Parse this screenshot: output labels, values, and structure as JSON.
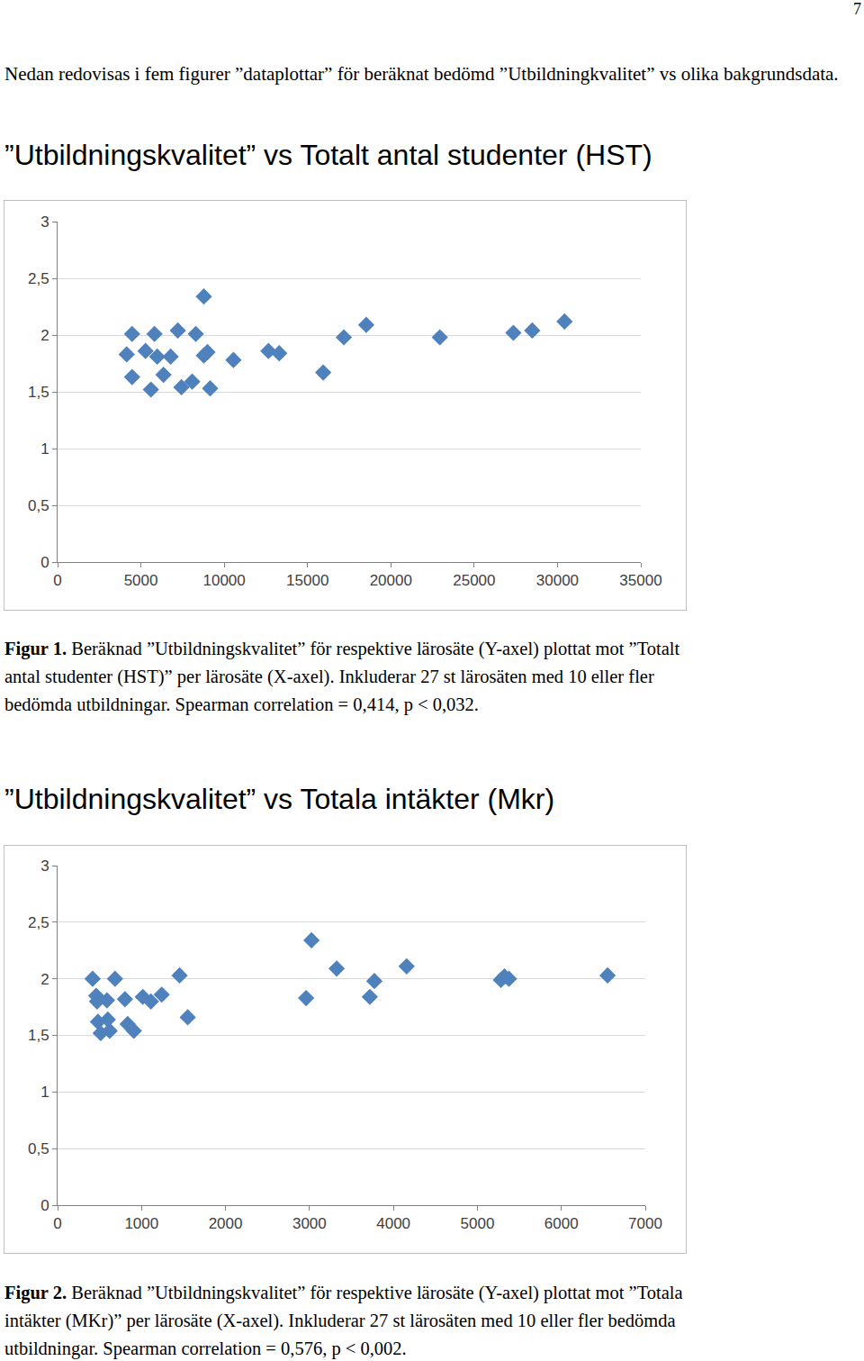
{
  "page_number": "7",
  "intro": "Nedan redovisas i fem figurer ”dataplottar” för beräknat bedömd ”Utbildningkvalitet” vs olika bakgrundsdata.",
  "chart_data": [
    {
      "type": "scatter",
      "title": "”Utbildningskvalitet” vs Totalt antal studenter (HST)",
      "caption": {
        "label": "Figur 1.",
        "text": "Beräknad ”Utbildningskvalitet” för respektive lärosäte (Y-axel) plottat mot ”Totalt antal studenter (HST)” per lärosäte (X-axel). Inkluderar 27 st lärosäten med 10 eller fler bedömda utbildningar. Spearman correlation = 0,414, p < 0,032."
      },
      "x": [
        4146,
        4470,
        4470,
        5277,
        5600,
        5816,
        5977,
        6354,
        6785,
        7216,
        7431,
        8077,
        8293,
        8777,
        8777,
        8993,
        9154,
        10554,
        12654,
        13300,
        15939,
        17177,
        18523,
        22939,
        27354,
        28485,
        30424
      ],
      "values": [
        1.83,
        2.01,
        1.63,
        1.86,
        1.52,
        2.01,
        1.81,
        1.65,
        1.81,
        2.04,
        1.54,
        1.59,
        2.01,
        2.34,
        1.82,
        1.85,
        1.53,
        1.78,
        1.86,
        1.84,
        1.67,
        1.98,
        2.09,
        1.98,
        2.02,
        2.04,
        2.12
      ],
      "color": "#4f81bd",
      "marker": "diamond",
      "grid": "y",
      "xlim": [
        0,
        35000
      ],
      "xticks": [
        0,
        5000,
        10000,
        15000,
        20000,
        25000,
        30000,
        35000
      ],
      "ylim": [
        0,
        3
      ],
      "yticks": [
        0,
        {
          "value": 0.5,
          "label": "0,5"
        },
        1,
        {
          "value": 1.5,
          "label": "1,5"
        },
        2,
        {
          "value": 2.5,
          "label": "2,5"
        },
        3
      ]
    },
    {
      "type": "scatter",
      "title": "”Utbildningskvalitet” vs Totala intäkter (Mkr)",
      "caption": {
        "label": "Figur 2.",
        "text": "Beräknad ”Utbildningskvalitet” för respektive lärosäte (Y-axel) plottat mot ”Totala intäkter (MKr)” per lärosäte (X-axel). Inkluderar 27 st lärosäten med 10 eller fler bedömda utbildningar. Spearman correlation = 0,576, p < 0,002."
      },
      "x": [
        417,
        460,
        470,
        481,
        513,
        588,
        598,
        620,
        684,
        802,
        834,
        908,
        1015,
        1111,
        1240,
        1453,
        1550,
        2960,
        3024,
        3324,
        3719,
        3773,
        4157,
        5280,
        5322,
        5376,
        6551
      ],
      "values": [
        2.0,
        1.85,
        1.8,
        1.62,
        1.52,
        1.81,
        1.64,
        1.54,
        2.0,
        1.82,
        1.6,
        1.54,
        1.84,
        1.8,
        1.86,
        2.03,
        1.66,
        1.83,
        2.34,
        2.09,
        1.84,
        1.98,
        2.11,
        1.99,
        2.02,
        2.0,
        2.03
      ],
      "color": "#4f81bd",
      "marker": "diamond",
      "grid": "y",
      "xlim": [
        0,
        7000
      ],
      "xticks": [
        0,
        1000,
        2000,
        3000,
        4000,
        5000,
        6000,
        7000
      ],
      "ylim": [
        0,
        3
      ],
      "yticks": [
        0,
        {
          "value": 0.5,
          "label": "0,5"
        },
        1,
        {
          "value": 1.5,
          "label": "1,5"
        },
        2,
        {
          "value": 2.5,
          "label": "2,5"
        },
        3
      ]
    }
  ]
}
